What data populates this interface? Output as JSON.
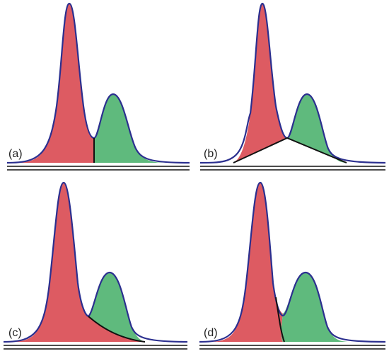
{
  "panels": [
    {
      "label": "(a)"
    },
    {
      "label": "(b)"
    },
    {
      "label": "(c)"
    },
    {
      "label": "(d)"
    }
  ],
  "colors": {
    "peak1_fill": "#dd5b62",
    "peak2_fill": "#5fba7d",
    "outline": "#2b2f8f",
    "split_line": "#111111",
    "baseline": "#111111"
  }
}
